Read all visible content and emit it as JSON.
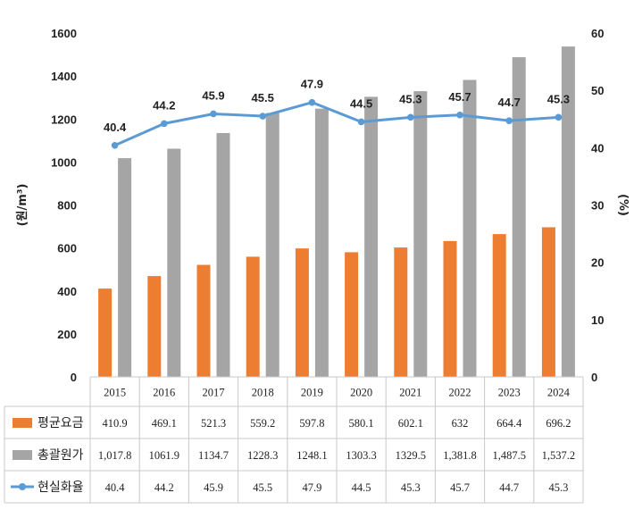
{
  "chart_data": {
    "type": "bar",
    "categories": [
      "2015",
      "2016",
      "2017",
      "2018",
      "2019",
      "2020",
      "2021",
      "2022",
      "2023",
      "2024"
    ],
    "series": [
      {
        "name": "평균요금",
        "kind": "bar",
        "axis": "left",
        "color": "#ED7D31",
        "values": [
          410.9,
          469.1,
          521.3,
          559.2,
          597.8,
          580.1,
          602.1,
          632,
          664.4,
          696.2
        ],
        "labels": [
          "410.9",
          "469.1",
          "521.3",
          "559.2",
          "597.8",
          "580.1",
          "602.1",
          "632",
          "664.4",
          "696.2"
        ]
      },
      {
        "name": "총괄원가",
        "kind": "bar",
        "axis": "left",
        "color": "#A5A5A5",
        "values": [
          1017.8,
          1061.9,
          1134.7,
          1228.3,
          1248.1,
          1303.3,
          1329.5,
          1381.8,
          1487.5,
          1537.2
        ],
        "labels": [
          "1,017.8",
          "1061.9",
          "1134.7",
          "1228.3",
          "1248.1",
          "1303.3",
          "1329.5",
          "1,381.8",
          "1,487.5",
          "1,537.2"
        ]
      },
      {
        "name": "현실화율",
        "kind": "line",
        "axis": "right",
        "color": "#5B9BD5",
        "values": [
          40.4,
          44.2,
          45.9,
          45.5,
          47.9,
          44.5,
          45.3,
          45.7,
          44.7,
          45.3
        ],
        "labels": [
          "40.4",
          "44.2",
          "45.9",
          "45.5",
          "47.9",
          "44.5",
          "45.3",
          "45.7",
          "44.7",
          "45.3"
        ]
      }
    ],
    "ylabel_left": "(원/m³)",
    "ylabel_right": "(%)",
    "ylim_left": [
      0,
      1600
    ],
    "yticks_left": [
      "0",
      "200",
      "400",
      "600",
      "800",
      "1000",
      "1200",
      "1400",
      "1600"
    ],
    "ylim_right": [
      0,
      60
    ],
    "yticks_right": [
      "0",
      "10",
      "20",
      "30",
      "40",
      "50",
      "60"
    ],
    "grid": false,
    "legend": "data-table"
  }
}
